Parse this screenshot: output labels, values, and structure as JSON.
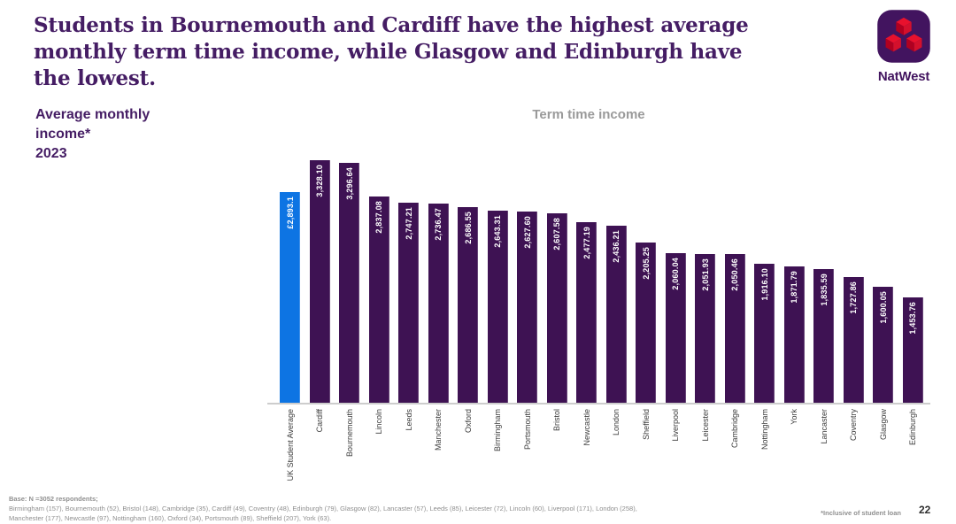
{
  "header": {
    "title": "Students in Bournemouth and Cardiff have the highest average monthly term time income, while Glasgow and Edinburgh have the lowest.",
    "logo_text": "NatWest"
  },
  "side_label": {
    "metric": "Average monthly income*",
    "year": "2023"
  },
  "chart_data": {
    "type": "bar",
    "title": "Term time income",
    "categories": [
      "UK Student Average",
      "Cardiff",
      "Bournemouth",
      "Lincoln",
      "Leeds",
      "Manchester",
      "Oxford",
      "Birmingham",
      "Portsmouth",
      "Bristol",
      "Newcastle",
      "London",
      "Sheffield",
      "Liverpool",
      "Leicester",
      "Cambridge",
      "Nottingham",
      "York",
      "Lancaster",
      "Coventry",
      "Glasgow",
      "Edinburgh"
    ],
    "values": [
      2893.1,
      3328.1,
      3296.64,
      2837.08,
      2747.21,
      2736.47,
      2686.55,
      2643.31,
      2627.6,
      2607.58,
      2477.19,
      2436.21,
      2205.25,
      2060.04,
      2051.93,
      2050.46,
      1916.1,
      1871.79,
      1835.59,
      1727.86,
      1600.05,
      1453.76
    ],
    "value_labels": [
      "£2,893.1",
      "3,328.10",
      "3,296.64",
      "2,837.08",
      "2,747.21",
      "2,736.47",
      "2,686.55",
      "2,643.31",
      "2,627.60",
      "2,607.58",
      "2,477.19",
      "2,436.21",
      "2,205.25",
      "2,060.04",
      "2,051.93",
      "2,050.46",
      "1,916.10",
      "1,871.79",
      "1,835.59",
      "1,727.86",
      "1,600.05",
      "1,453.76"
    ],
    "highlight_index": 0,
    "highlight_color": "#0d74e3",
    "bar_color": "#3e1253",
    "label_color": "#ffffff",
    "xlabel": "",
    "ylabel": "",
    "ylim": [
      0,
      3450
    ],
    "grid": false,
    "legend": false,
    "x_labels_rotated": "90deg bottom-to-top"
  },
  "footer": {
    "base_line1": "Base: N =3052 respondents;",
    "base_line2": "Birmingham (157),  Bournemouth (52), Bristol (148), Cambridge (35), Cardiff (49), Coventry (48),  Edinburgh (79), Glasgow (82), Lancaster (57), Leeds (85), Leicester (72), Lincoln (60), Liverpool (171), London (258),",
    "base_line3": "Manchester (177), Newcastle (97), Nottingham (160), Oxford (34), Portsmouth (89), Sheffield (207), York (63).",
    "footnote_right": "*Inclusive of student loan",
    "page_number": "22"
  }
}
